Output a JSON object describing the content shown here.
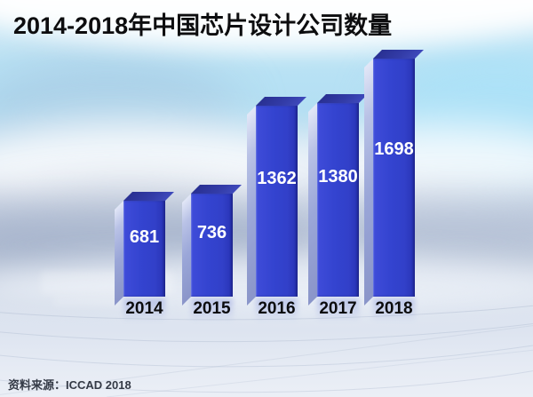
{
  "title": "2014-2018年中国芯片设计公司数量",
  "source": "资料来源：ICCAD 2018",
  "chart_data": {
    "type": "bar",
    "title": "2014-2018年中国芯片设计公司数量",
    "categories": [
      "2014",
      "2015",
      "2016",
      "2017",
      "2018"
    ],
    "values": [
      681,
      736,
      1362,
      1380,
      1698
    ],
    "xlabel": "",
    "ylabel": "",
    "ylim": [
      0,
      1800
    ],
    "grid": false,
    "legend_position": "none",
    "value_labels_visible": true,
    "style_3d": true,
    "colors": {
      "bar_front": "#3343cf",
      "bar_top": "#2b3298",
      "bar_side": "#9ba7d8",
      "value_label": "#ffffff",
      "year_label": "#0b0b0d",
      "title_text": "#0d0d0f",
      "source_text": "#343a46",
      "sky": "#b3dff3",
      "floor": "#e0e7f2"
    },
    "source_note": "资料来源：ICCAD 2018"
  }
}
